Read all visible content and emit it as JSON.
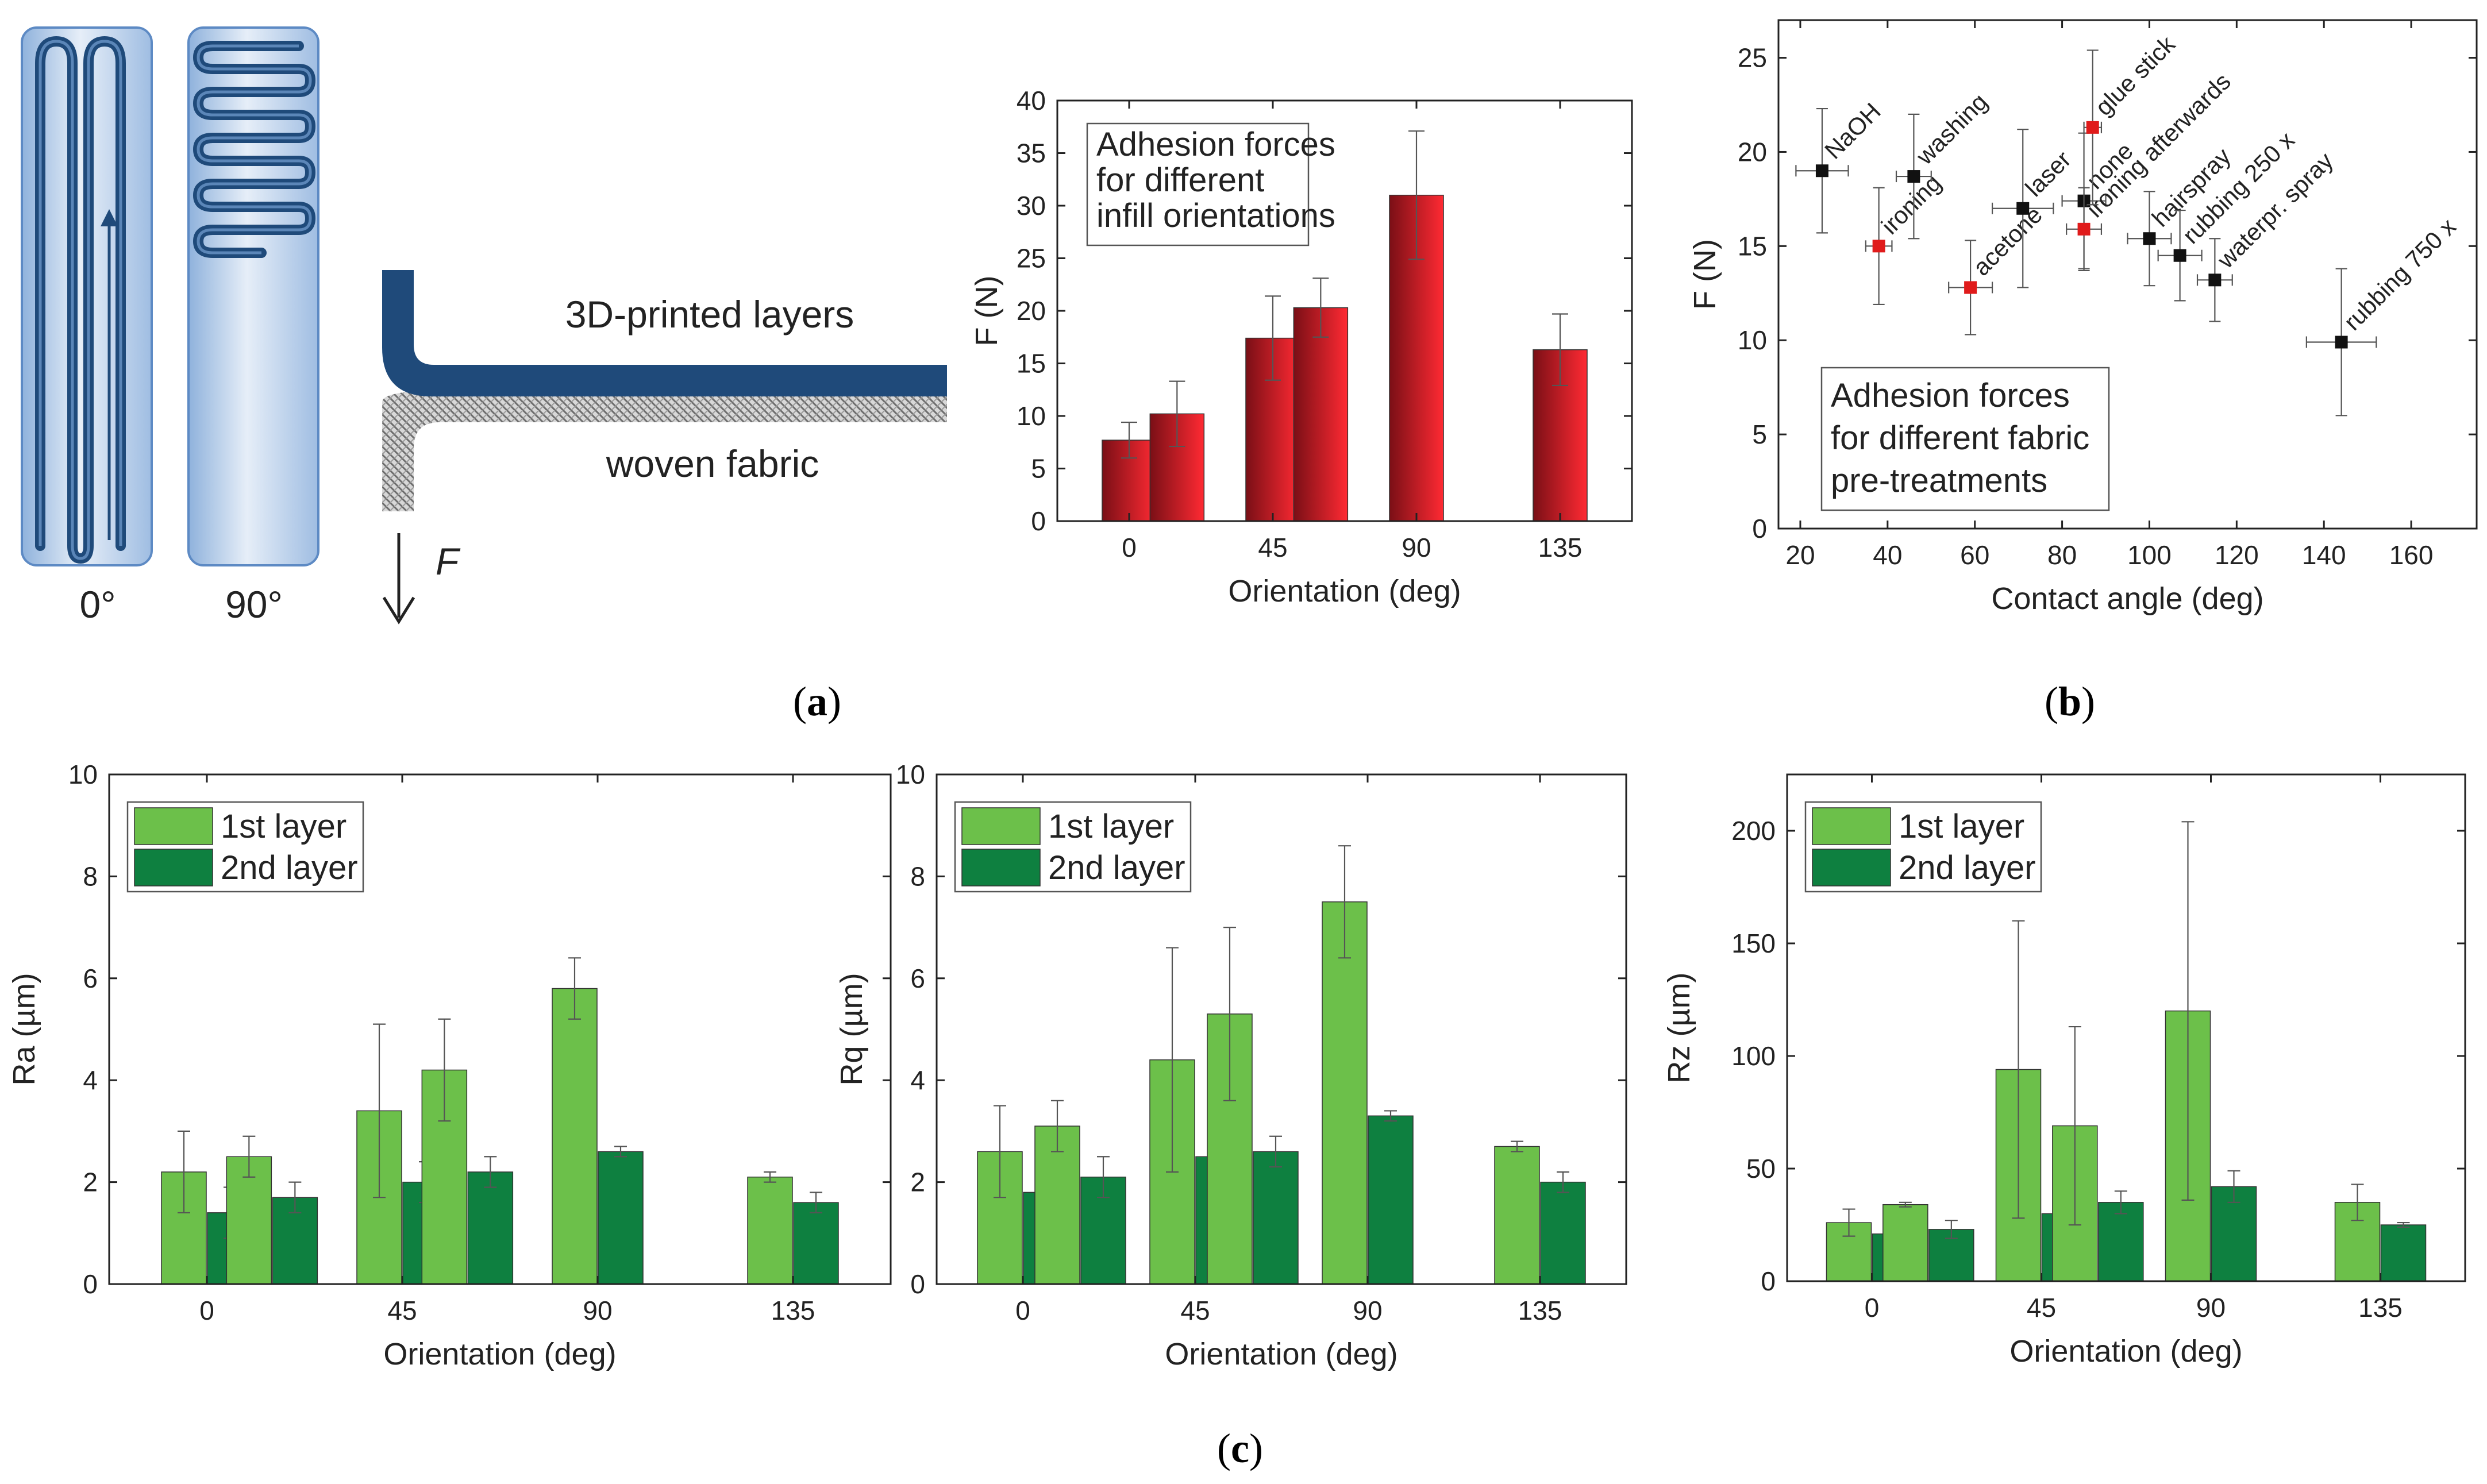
{
  "schematic": {
    "label_0": "0°",
    "label_90": "90°",
    "layers_label": "3D-printed layers",
    "fabric_label": "woven fabric",
    "force_label": "F",
    "colors": {
      "filament": "#1f4a7a",
      "panel": "#b9cfe9",
      "fabric": "#9a9a9a"
    }
  },
  "panel_labels": {
    "a": "a",
    "b": "b",
    "c": "c"
  },
  "chart_data": [
    {
      "id": "a",
      "type": "bar",
      "legend_box": [
        "Adhesion forces",
        "for different",
        "infill orientations"
      ],
      "xlabel": "Orientation (deg)",
      "ylabel": "F (N)",
      "x": [
        0,
        15,
        45,
        60,
        90,
        135
      ],
      "xticks": [
        0,
        45,
        90,
        135
      ],
      "xlim": [
        -22.5,
        157.5
      ],
      "values": [
        7.7,
        10.2,
        17.4,
        20.3,
        31.0,
        16.3
      ],
      "errors": [
        1.7,
        3.1,
        4.0,
        2.8,
        6.1,
        3.4
      ],
      "ylim": [
        0,
        40
      ],
      "yticks": [
        0,
        5,
        10,
        15,
        20,
        25,
        30,
        35,
        40
      ],
      "colors": {
        "bar_dark": "#7a0f16",
        "bar_light": "#ff2a33"
      }
    },
    {
      "id": "b",
      "type": "scatter",
      "legend_box": [
        "Adhesion forces",
        "for different fabric",
        "pre-treatments"
      ],
      "xlabel": "Contact angle (deg)",
      "ylabel": "F (N)",
      "xlim": [
        15,
        175
      ],
      "ylim": [
        0,
        27
      ],
      "xticks": [
        20,
        40,
        60,
        80,
        100,
        120,
        140,
        160
      ],
      "yticks": [
        0,
        5,
        10,
        15,
        20,
        25
      ],
      "points": [
        {
          "label": "NaOH",
          "x": 25,
          "y": 19.0,
          "xerr": 6,
          "yerr": 3.3,
          "color": "#111111"
        },
        {
          "label": "ironing",
          "x": 38,
          "y": 15.0,
          "xerr": 3,
          "yerr": 3.1,
          "color": "#e01b1b"
        },
        {
          "label": "washing",
          "x": 46,
          "y": 18.7,
          "xerr": 4,
          "yerr": 3.3,
          "color": "#111111"
        },
        {
          "label": "acetone",
          "x": 59,
          "y": 12.8,
          "xerr": 5,
          "yerr": 2.5,
          "color": "#e01b1b"
        },
        {
          "label": "laser",
          "x": 71,
          "y": 17.0,
          "xerr": 7,
          "yerr": 4.2,
          "color": "#111111"
        },
        {
          "label": "none",
          "x": 85,
          "y": 17.4,
          "xerr": 5,
          "yerr": 3.6,
          "color": "#111111"
        },
        {
          "label": "ironing afterwards",
          "x": 85,
          "y": 15.9,
          "xerr": 4,
          "yerr": 2.2,
          "color": "#e01b1b"
        },
        {
          "label": "glue stick",
          "x": 87,
          "y": 21.3,
          "xerr": 2,
          "yerr": 4.1,
          "color": "#e01b1b"
        },
        {
          "label": "hairspray",
          "x": 100,
          "y": 15.4,
          "xerr": 5,
          "yerr": 2.5,
          "color": "#111111"
        },
        {
          "label": "rubbing 250 x",
          "x": 107,
          "y": 14.5,
          "xerr": 5,
          "yerr": 2.4,
          "color": "#111111"
        },
        {
          "label": "waterpr. spray",
          "x": 115,
          "y": 13.2,
          "xerr": 4,
          "yerr": 2.2,
          "color": "#111111"
        },
        {
          "label": "rubbing 750 x",
          "x": 144,
          "y": 9.9,
          "xerr": 8,
          "yerr": 3.9,
          "color": "#111111"
        }
      ]
    },
    {
      "id": "c1",
      "type": "bar",
      "xlabel": "Orientation (deg)",
      "ylabel": "Ra (µm)",
      "xticks": [
        0,
        45,
        90,
        135
      ],
      "xlim": [
        -22.5,
        157.5
      ],
      "x": [
        0,
        15,
        45,
        60,
        90,
        135
      ],
      "ylim": [
        0,
        10
      ],
      "yticks": [
        0,
        2,
        4,
        6,
        8,
        10
      ],
      "series": [
        {
          "name": "1st layer",
          "color": "#6cc04a",
          "values": [
            2.2,
            2.5,
            3.4,
            4.2,
            5.8,
            2.1
          ],
          "errors": [
            0.8,
            0.4,
            1.7,
            1.0,
            0.6,
            0.1
          ]
        },
        {
          "name": "2nd layer",
          "color": "#0e8040",
          "values": [
            1.4,
            1.7,
            2.0,
            2.2,
            2.6,
            1.6
          ],
          "errors": [
            0.5,
            0.3,
            0.4,
            0.3,
            0.1,
            0.2
          ]
        }
      ]
    },
    {
      "id": "c2",
      "type": "bar",
      "xlabel": "Orientation (deg)",
      "ylabel": "Rq (µm)",
      "xticks": [
        0,
        45,
        90,
        135
      ],
      "xlim": [
        -22.5,
        157.5
      ],
      "x": [
        0,
        15,
        45,
        60,
        90,
        135
      ],
      "ylim": [
        0,
        10
      ],
      "yticks": [
        0,
        2,
        4,
        6,
        8,
        10
      ],
      "series": [
        {
          "name": "1st layer",
          "color": "#6cc04a",
          "values": [
            2.6,
            3.1,
            4.4,
            5.3,
            7.5,
            2.7
          ],
          "errors": [
            0.9,
            0.5,
            2.2,
            1.7,
            1.1,
            0.1
          ]
        },
        {
          "name": "2nd layer",
          "color": "#0e8040",
          "values": [
            1.8,
            2.1,
            2.5,
            2.6,
            3.3,
            2.0
          ],
          "errors": [
            0.7,
            0.4,
            0.5,
            0.3,
            0.1,
            0.2
          ]
        }
      ]
    },
    {
      "id": "c3",
      "type": "bar",
      "xlabel": "Orientation (deg)",
      "ylabel": "Rz (µm)",
      "xticks": [
        0,
        45,
        90,
        135
      ],
      "xlim": [
        -22.5,
        157.5
      ],
      "x": [
        0,
        15,
        45,
        60,
        90,
        135
      ],
      "ylim": [
        0,
        225
      ],
      "yticks": [
        0,
        50,
        100,
        150,
        200
      ],
      "series": [
        {
          "name": "1st layer",
          "color": "#6cc04a",
          "values": [
            26,
            34,
            94,
            69,
            120,
            35
          ],
          "errors": [
            6,
            1,
            66,
            44,
            84,
            8
          ]
        },
        {
          "name": "2nd layer",
          "color": "#0e8040",
          "values": [
            21,
            23,
            30,
            35,
            42,
            25
          ],
          "errors": [
            5,
            4,
            6,
            5,
            7,
            1
          ]
        }
      ]
    }
  ]
}
